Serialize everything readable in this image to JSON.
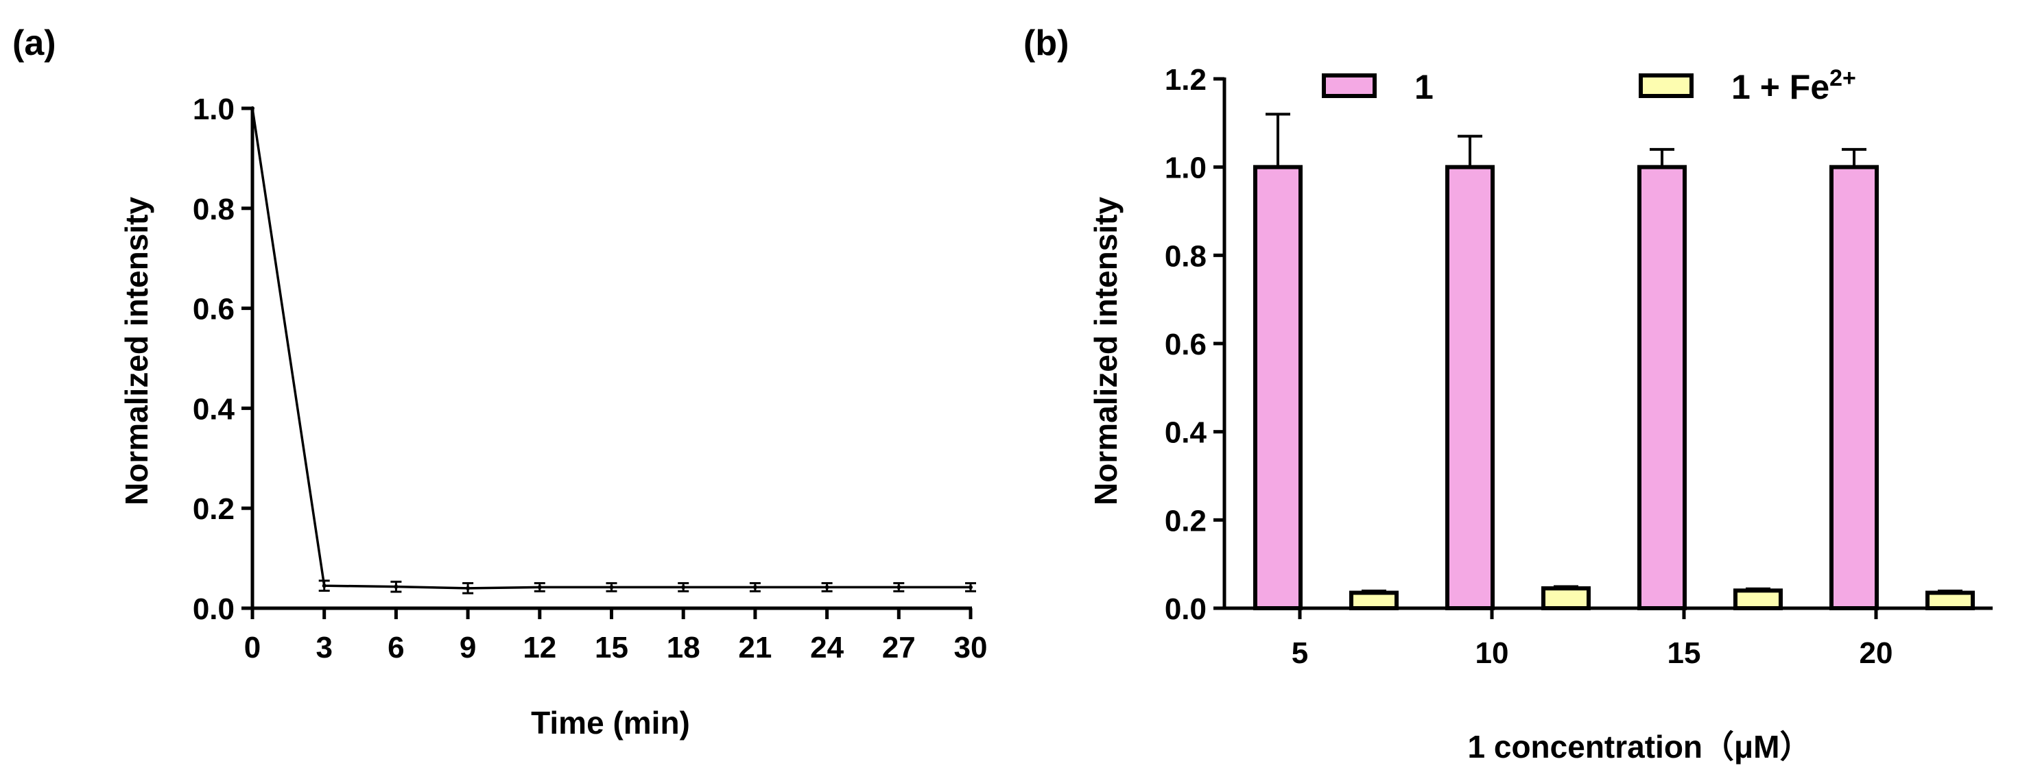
{
  "chart_data": [
    {
      "panel_label": "(a)",
      "type": "line",
      "xlabel": "Time (min)",
      "ylabel": "Normalized intensity",
      "xlim": [
        0,
        30
      ],
      "ylim": [
        0,
        1.0
      ],
      "x_ticks": [
        0,
        3,
        6,
        9,
        12,
        15,
        18,
        21,
        24,
        27,
        30
      ],
      "y_ticks": [
        0.0,
        0.2,
        0.4,
        0.6,
        0.8,
        1.0
      ],
      "series": [
        {
          "x": [
            0,
            3,
            6,
            9,
            12,
            15,
            18,
            21,
            24,
            27,
            30
          ],
          "y": [
            1.0,
            0.045,
            0.043,
            0.04,
            0.042,
            0.042,
            0.042,
            0.042,
            0.042,
            0.042,
            0.042
          ],
          "err": [
            0.0,
            0.01,
            0.01,
            0.01,
            0.008,
            0.008,
            0.008,
            0.008,
            0.008,
            0.008,
            0.008
          ]
        }
      ],
      "grid": false
    },
    {
      "panel_label": "(b)",
      "type": "bar",
      "xlabel": "1 concentration（μM）",
      "ylabel": "Normalized intensity",
      "ylim": [
        0,
        1.2
      ],
      "y_ticks": [
        0.0,
        0.2,
        0.4,
        0.6,
        0.8,
        1.0,
        1.2
      ],
      "categories": [
        "5",
        "10",
        "15",
        "20"
      ],
      "series": [
        {
          "name": "1",
          "values": [
            1.0,
            1.0,
            1.0,
            1.0
          ],
          "err": [
            0.12,
            0.07,
            0.04,
            0.04
          ],
          "color": "#f4a9e4"
        },
        {
          "name": "1 + Fe",
          "name_sup": "2+",
          "values": [
            0.035,
            0.045,
            0.04,
            0.035
          ],
          "err": [
            0.004,
            0.004,
            0.004,
            0.004
          ],
          "color": "#fdfdb0"
        }
      ],
      "legend_position": "top",
      "grid": false
    }
  ]
}
